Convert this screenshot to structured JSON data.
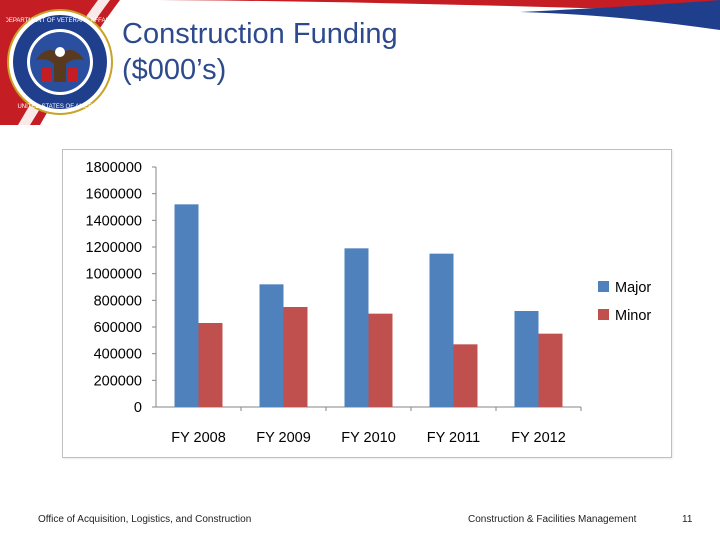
{
  "slide": {
    "title_line1": "Construction Funding",
    "title_line2": "($000’s)",
    "footer_left": "Office of Acquisition, Logistics, and Construction",
    "footer_center": "Construction & Facilities Management",
    "page_number": "11",
    "seal_text_top": "DEPARTMENT OF VETERANS AFFAIRS",
    "seal_text_bottom": "UNITED STATES OF AMERICA"
  },
  "colors": {
    "title": "#2d4a8c",
    "band_red": "#c41e24",
    "band_blue": "#1f3f8c"
  },
  "chart_data": {
    "type": "bar",
    "categories": [
      "FY 2008",
      "FY 2009",
      "FY 2010",
      "FY 2011",
      "FY 2012"
    ],
    "series": [
      {
        "name": "Major",
        "color": "#4f81bd",
        "values": [
          1520000,
          920000,
          1190000,
          1150000,
          720000
        ]
      },
      {
        "name": "Minor",
        "color": "#c0504d",
        "values": [
          630000,
          750000,
          700000,
          470000,
          550000
        ]
      }
    ],
    "ylim": [
      0,
      1800000
    ],
    "yticks": [
      0,
      200000,
      400000,
      600000,
      800000,
      1000000,
      1200000,
      1400000,
      1600000,
      1800000
    ],
    "title": "",
    "xlabel": "",
    "ylabel": "",
    "grid": false,
    "legend": "right"
  }
}
